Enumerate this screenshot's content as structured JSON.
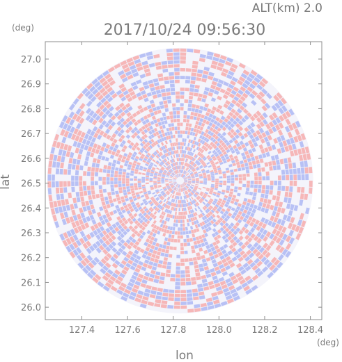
{
  "header": {
    "altitude": "ALT(km) 2.0",
    "timestamp": "2017/10/24 09:56:30"
  },
  "colors": {
    "positive": "#f6a8a8",
    "negative": "#a9b4f4",
    "neutral": "#f4f4fb",
    "frame": "#8c8c8c",
    "text": "#7a7a7a"
  },
  "chart_data": {
    "type": "heatmap",
    "description_scope": "polar radar scan (plan-position indicator) centered on plot",
    "xlabel": "lon",
    "ylabel": "lat",
    "x_unit": "(deg)",
    "y_unit": "(deg)",
    "xlim": [
      127.24,
      128.45
    ],
    "ylim": [
      25.95,
      27.07
    ],
    "xticks": [
      127.4,
      127.6,
      127.8,
      128.0,
      128.2,
      128.4
    ],
    "yticks": [
      26.0,
      26.1,
      26.2,
      26.3,
      26.4,
      26.5,
      26.6,
      26.7,
      26.8,
      26.9,
      27.0
    ],
    "xtick_labels": [
      "127.4",
      "127.6",
      "127.8",
      "128.0",
      "128.2",
      "128.4"
    ],
    "ytick_labels": [
      "26.0",
      "26.1",
      "26.2",
      "26.3",
      "26.4",
      "26.5",
      "26.6",
      "26.7",
      "26.8",
      "26.9",
      "27.0"
    ],
    "scan_center": {
      "lon": 127.83,
      "lat": 26.51
    },
    "scan_radius_lat_deg": 0.535
  }
}
